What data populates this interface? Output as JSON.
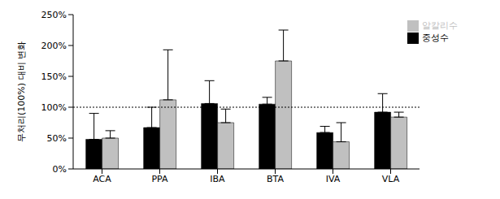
{
  "chart_data": {
    "type": "bar",
    "y_label": "무처리(100%) 대비 변화",
    "categories": [
      "ACA",
      "PPA",
      "IBA",
      "BTA",
      "IVA",
      "VLA"
    ],
    "series": [
      {
        "name": "중성수",
        "color": "#000000",
        "values": [
          48,
          67,
          106,
          105,
          59,
          92
        ],
        "errors": [
          42,
          33,
          37,
          11,
          10,
          30
        ]
      },
      {
        "name": "알칼리수",
        "color": "#c0c0c0",
        "values": [
          50,
          112,
          75,
          175,
          44,
          84
        ],
        "errors": [
          12,
          81,
          22,
          50,
          31,
          8
        ]
      }
    ],
    "ylim": [
      0,
      250
    ],
    "yticks": [
      {
        "value": 0,
        "label": "0%"
      },
      {
        "value": 50,
        "label": "50%"
      },
      {
        "value": 100,
        "label": "100%"
      },
      {
        "value": 150,
        "label": "150%"
      },
      {
        "value": 200,
        "label": "200%"
      },
      {
        "value": 250,
        "label": "250%"
      }
    ],
    "reference_line": 100,
    "grid": false,
    "legend": "top-right"
  }
}
